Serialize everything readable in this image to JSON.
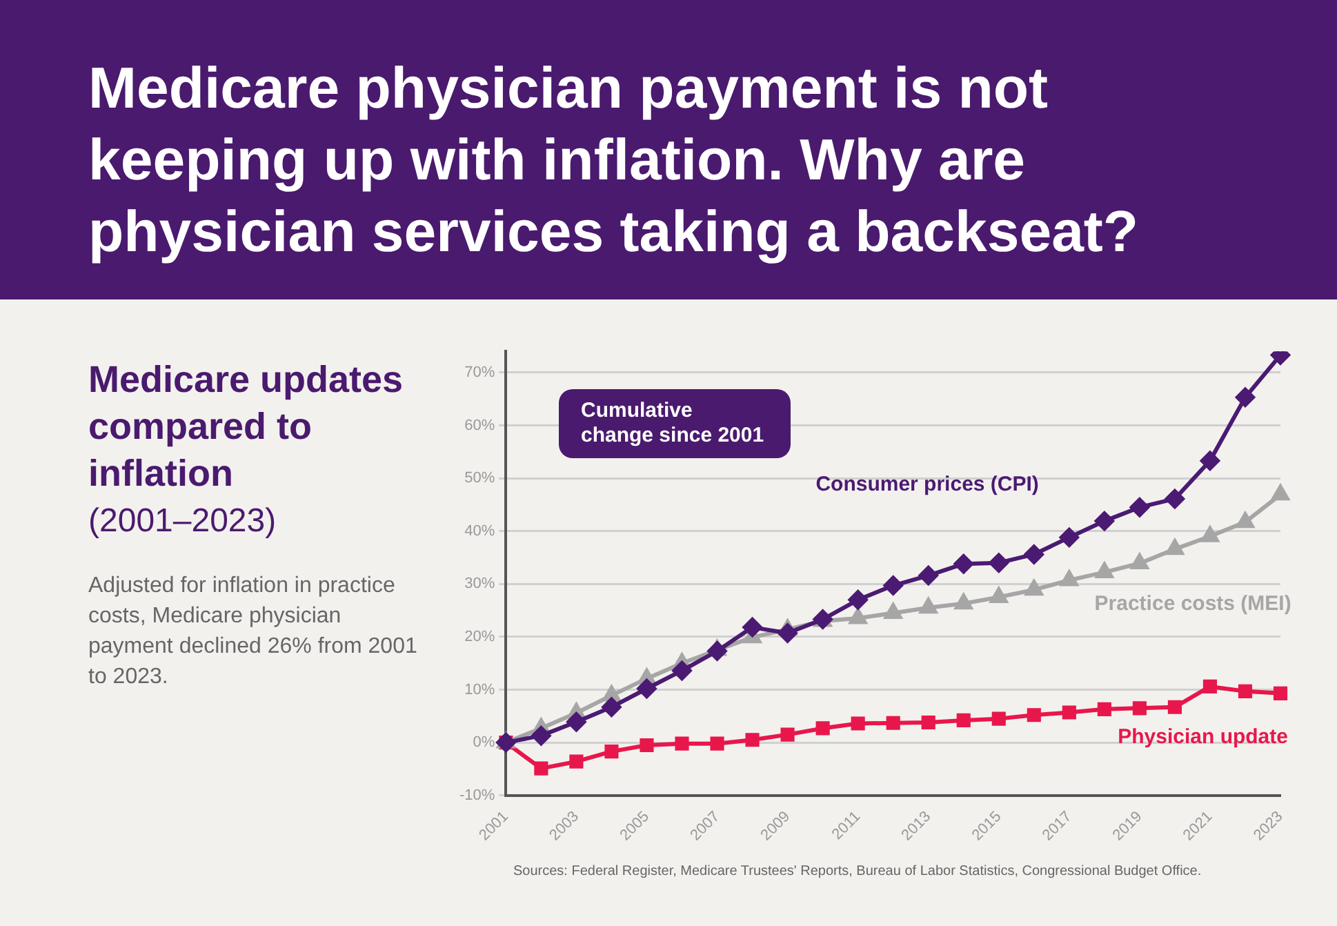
{
  "chart_data": {
    "type": "line",
    "title": "Medicare physician payment is not keeping up with inflation. Why are physician services taking a backseat?",
    "subtitle": "Medicare updates compared to inflation",
    "annotations": [
      "(2001–2023)",
      "Adjusted for inflation in practice costs, Medicare physician payment declined 26% from 2001 to 2023.",
      "Cumulative change since 2001",
      "Sources: Federal Register, Medicare Trustees' Reports, Bureau of Labor Statistics, Congressional Budget Office."
    ],
    "categories": [
      "2001",
      null,
      "2003",
      null,
      "2005",
      null,
      "2007",
      null,
      "2009",
      null,
      "2011",
      null,
      "2013",
      null,
      "2015",
      null,
      "2017",
      null,
      "2019",
      null,
      "2021",
      null,
      "2023"
    ],
    "series": [
      {
        "name": "Consumer prices (CPI)",
        "color": "#4b1a72",
        "marker": "diamond",
        "values": [
          0,
          1.3,
          3.9,
          6.7,
          10.2,
          13.6,
          17.3,
          21.8,
          20.7,
          23.3,
          27.0,
          29.7,
          31.6,
          33.8,
          34.0,
          35.6,
          38.8,
          41.9,
          44.5,
          46.1,
          53.3,
          65.3,
          73.3
        ]
      },
      {
        "name": "Practice costs (MEI)",
        "color": "#a6a6a6",
        "marker": "triangle",
        "values": [
          0,
          2.7,
          5.6,
          8.9,
          12.1,
          15.0,
          17.5,
          19.9,
          21.4,
          23.0,
          23.5,
          24.5,
          25.5,
          26.3,
          27.5,
          28.9,
          30.7,
          32.2,
          33.9,
          36.6,
          39.0,
          41.7,
          46.9
        ]
      },
      {
        "name": "Physician update",
        "color": "#e8174b",
        "marker": "square",
        "values": [
          0,
          -4.9,
          -3.6,
          -1.7,
          -0.5,
          -0.2,
          -0.2,
          0.5,
          1.5,
          2.7,
          3.6,
          3.7,
          3.8,
          4.2,
          4.5,
          5.2,
          5.7,
          6.3,
          6.5,
          6.7,
          10.6,
          9.7,
          9.3
        ]
      }
    ],
    "ylim": [
      -10,
      74
    ],
    "yticks": [
      {
        "value": -10,
        "label": "-10%"
      },
      {
        "value": 0,
        "label": "0%"
      },
      {
        "value": 10,
        "label": "10%"
      },
      {
        "value": 20,
        "label": "20%"
      },
      {
        "value": 30,
        "label": "30%"
      },
      {
        "value": 40,
        "label": "40%"
      },
      {
        "value": 50,
        "label": "50%"
      },
      {
        "value": 60,
        "label": "60%"
      },
      {
        "value": 70,
        "label": "70%"
      }
    ],
    "grid": "y",
    "legend": false,
    "line_style": "solid"
  }
}
